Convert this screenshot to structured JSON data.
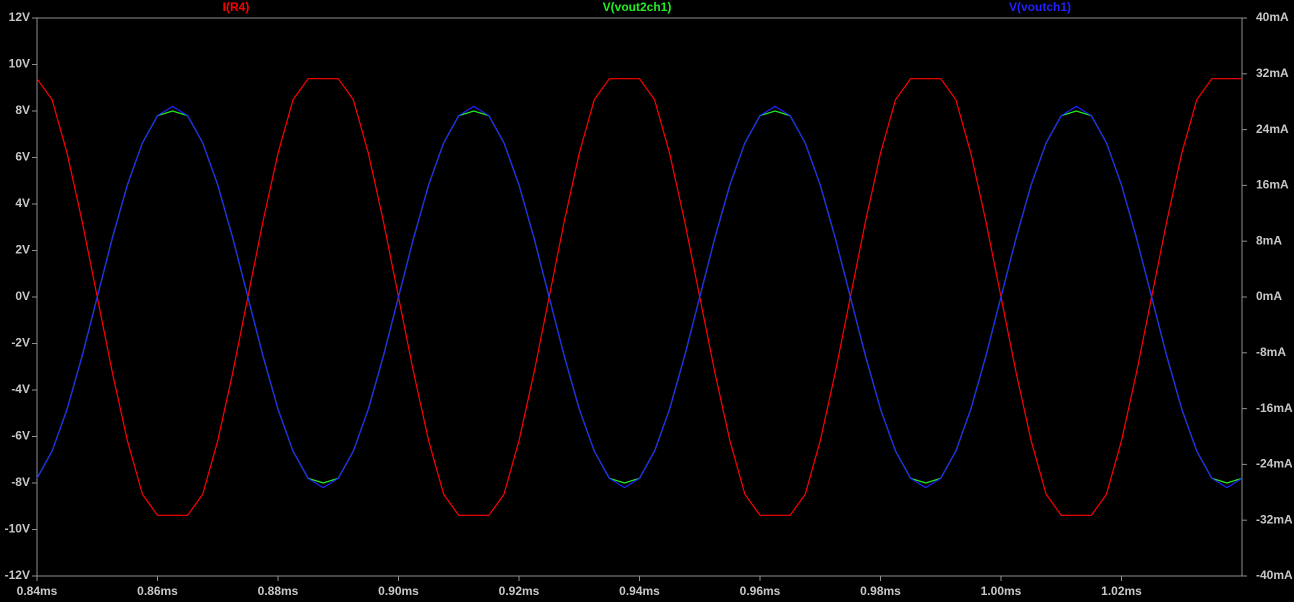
{
  "chart_data": {
    "type": "line",
    "x": [
      0.84,
      0.8425,
      0.845,
      0.8475,
      0.85,
      0.8525,
      0.855,
      0.8575,
      0.86,
      0.8625,
      0.865,
      0.8675,
      0.87,
      0.8725,
      0.875,
      0.8775,
      0.88,
      0.8825,
      0.885,
      0.8875,
      0.89,
      0.8925,
      0.895,
      0.8975,
      0.9,
      0.9025,
      0.905,
      0.9075,
      0.91,
      0.9125,
      0.915,
      0.9175,
      0.92,
      0.9225,
      0.925,
      0.9275,
      0.93,
      0.9325,
      0.935,
      0.9375,
      0.94,
      0.9425,
      0.945,
      0.9475,
      0.95,
      0.9525,
      0.955,
      0.9575,
      0.96,
      0.9625,
      0.965,
      0.9675,
      0.97,
      0.9725,
      0.975,
      0.9775,
      0.98,
      0.9825,
      0.985,
      0.9875,
      0.99,
      0.9925,
      0.995,
      0.9975,
      1.0,
      1.0025,
      1.005,
      1.0075,
      1.01,
      1.0125,
      1.015,
      1.0175,
      1.02,
      1.0225,
      1.025,
      1.0275,
      1.03,
      1.0325,
      1.035,
      1.0375,
      1.04
    ],
    "series": [
      {
        "name": "I(R4)",
        "color": "#ff0000",
        "axis": "y2",
        "values": [
          31.3,
          28.3,
          20.6,
          10.8,
          0,
          -10.8,
          -20.6,
          -28.3,
          -31.3,
          -31.3,
          -31.3,
          -28.3,
          -20.6,
          -10.8,
          0,
          10.8,
          20.6,
          28.3,
          31.3,
          31.3,
          31.3,
          28.3,
          20.6,
          10.8,
          0,
          -10.8,
          -20.6,
          -28.3,
          -31.3,
          -31.3,
          -31.3,
          -28.3,
          -20.6,
          -10.8,
          0,
          10.8,
          20.6,
          28.3,
          31.3,
          31.3,
          31.3,
          28.3,
          20.6,
          10.8,
          0,
          -10.8,
          -20.6,
          -28.3,
          -31.3,
          -31.3,
          -31.3,
          -28.3,
          -20.6,
          -10.8,
          0,
          10.8,
          20.6,
          28.3,
          31.3,
          31.3,
          31.3,
          28.3,
          20.6,
          10.8,
          0,
          -10.8,
          -20.6,
          -28.3,
          -31.3,
          -31.3,
          -31.3,
          -28.3,
          -20.6,
          -10.8,
          0,
          10.8,
          20.6,
          28.3,
          31.3,
          31.3,
          31.3
        ]
      },
      {
        "name": "V(vout2ch1)",
        "color": "#22ee22",
        "values": [
          -7.8,
          -6.63,
          -4.82,
          -2.53,
          0,
          2.53,
          4.82,
          6.63,
          7.8,
          8,
          7.8,
          6.63,
          4.82,
          2.53,
          0,
          -2.53,
          -4.82,
          -6.63,
          -7.8,
          -8,
          -7.8,
          -6.63,
          -4.82,
          -2.53,
          0,
          2.53,
          4.82,
          6.63,
          7.8,
          8,
          7.8,
          6.63,
          4.82,
          2.53,
          0,
          -2.53,
          -4.82,
          -6.63,
          -7.8,
          -8,
          -7.8,
          -6.63,
          -4.82,
          -2.53,
          0,
          2.53,
          4.82,
          6.63,
          7.8,
          8,
          7.8,
          6.63,
          4.82,
          2.53,
          0,
          -2.53,
          -4.82,
          -6.63,
          -7.8,
          -8,
          -7.8,
          -6.63,
          -4.82,
          -2.53,
          0,
          2.53,
          4.82,
          6.63,
          7.8,
          8,
          7.8,
          6.63,
          4.82,
          2.53,
          0,
          -2.53,
          -4.82,
          -6.63,
          -7.8,
          -8,
          -7.8
        ]
      },
      {
        "name": "V(voutch1)",
        "color": "#2222ff",
        "values": [
          -7.8,
          -6.63,
          -4.82,
          -2.53,
          0,
          2.53,
          4.82,
          6.63,
          7.8,
          8.2,
          7.8,
          6.63,
          4.82,
          2.53,
          0,
          -2.53,
          -4.82,
          -6.63,
          -7.8,
          -8.2,
          -7.8,
          -6.63,
          -4.82,
          -2.53,
          0,
          2.53,
          4.82,
          6.63,
          7.8,
          8.2,
          7.8,
          6.63,
          4.82,
          2.53,
          0,
          -2.53,
          -4.82,
          -6.63,
          -7.8,
          -8.2,
          -7.8,
          -6.63,
          -4.82,
          -2.53,
          0,
          2.53,
          4.82,
          6.63,
          7.8,
          8.2,
          7.8,
          6.63,
          4.82,
          2.53,
          0,
          -2.53,
          -4.82,
          -6.63,
          -7.8,
          -8.2,
          -7.8,
          -6.63,
          -4.82,
          -2.53,
          0,
          2.53,
          4.82,
          6.63,
          7.8,
          8.2,
          7.8,
          6.63,
          4.82,
          2.53,
          0,
          -2.53,
          -4.82,
          -6.63,
          -7.8,
          -8.2,
          -7.8
        ]
      }
    ],
    "xlim": [
      0.84,
      1.04
    ],
    "xticks": [
      {
        "value": 0.84,
        "label": "0.84ms"
      },
      {
        "value": 0.86,
        "label": "0.86ms"
      },
      {
        "value": 0.88,
        "label": "0.88ms"
      },
      {
        "value": 0.9,
        "label": "0.90ms"
      },
      {
        "value": 0.92,
        "label": "0.92ms"
      },
      {
        "value": 0.94,
        "label": "0.94ms"
      },
      {
        "value": 0.96,
        "label": "0.96ms"
      },
      {
        "value": 0.98,
        "label": "0.98ms"
      },
      {
        "value": 1.0,
        "label": "1.00ms"
      },
      {
        "value": 1.02,
        "label": "1.02ms"
      }
    ],
    "ylim": [
      -12,
      12
    ],
    "yticks": [
      {
        "value": 12,
        "label": "12V"
      },
      {
        "value": 10,
        "label": "10V"
      },
      {
        "value": 8,
        "label": "8V"
      },
      {
        "value": 6,
        "label": "6V"
      },
      {
        "value": 4,
        "label": "4V"
      },
      {
        "value": 2,
        "label": "2V"
      },
      {
        "value": 0,
        "label": "0V"
      },
      {
        "value": -2,
        "label": "-2V"
      },
      {
        "value": -4,
        "label": "-4V"
      },
      {
        "value": -6,
        "label": "-6V"
      },
      {
        "value": -8,
        "label": "-8V"
      },
      {
        "value": -10,
        "label": "-10V"
      },
      {
        "value": -12,
        "label": "-12V"
      }
    ],
    "y2lim": [
      -40,
      40
    ],
    "y2ticks": [
      {
        "value": 40,
        "label": "40mA"
      },
      {
        "value": 32,
        "label": "32mA"
      },
      {
        "value": 24,
        "label": "24mA"
      },
      {
        "value": 16,
        "label": "16mA"
      },
      {
        "value": 8,
        "label": "8mA"
      },
      {
        "value": 0,
        "label": "0mA"
      },
      {
        "value": -8,
        "label": "-8mA"
      },
      {
        "value": -16,
        "label": "-16mA"
      },
      {
        "value": -24,
        "label": "-24mA"
      },
      {
        "value": -32,
        "label": "-32mA"
      },
      {
        "value": -40,
        "label": "-40mA"
      }
    ]
  }
}
